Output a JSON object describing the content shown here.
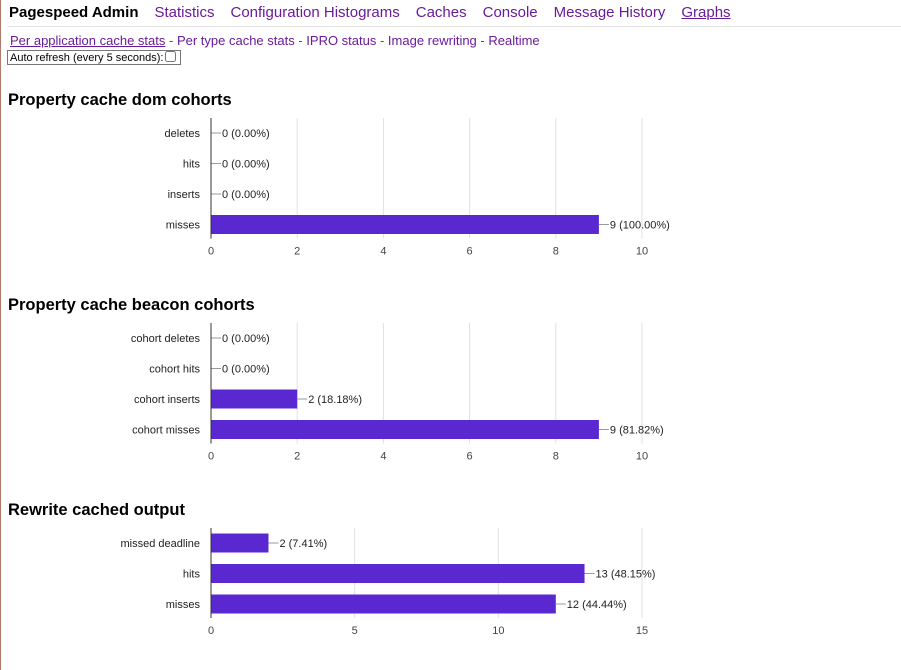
{
  "nav": {
    "brand": "Pagespeed Admin",
    "links": [
      "Statistics",
      "Configuration Histograms",
      "Caches",
      "Console",
      "Message History",
      "Graphs"
    ],
    "active": "Graphs"
  },
  "subnav": {
    "links": [
      "Per application cache stats",
      "Per type cache stats",
      "IPRO status",
      "Image rewriting",
      "Realtime"
    ],
    "separator": " - ",
    "active": "Per application cache stats"
  },
  "auto_refresh": {
    "label": "Auto refresh (every 5 seconds):",
    "checked": false
  },
  "colors": {
    "bar": "#5a28d0",
    "link": "#6a1b9a",
    "grid": "#e0e0e0",
    "axis": "#333333"
  },
  "chart_data": [
    {
      "type": "bar",
      "orientation": "horizontal",
      "title": "Property cache dom cohorts",
      "categories": [
        "deletes",
        "hits",
        "inserts",
        "misses"
      ],
      "values": [
        0,
        0,
        0,
        9
      ],
      "value_labels": [
        "0 (0.00%)",
        "0 (0.00%)",
        "0 (0.00%)",
        "9 (100.00%)"
      ],
      "xlim": [
        0,
        10
      ],
      "xticks": [
        0,
        2,
        4,
        6,
        8,
        10
      ],
      "grid": true
    },
    {
      "type": "bar",
      "orientation": "horizontal",
      "title": "Property cache beacon cohorts",
      "categories": [
        "cohort deletes",
        "cohort hits",
        "cohort inserts",
        "cohort misses"
      ],
      "values": [
        0,
        0,
        2,
        9
      ],
      "value_labels": [
        "0 (0.00%)",
        "0 (0.00%)",
        "2 (18.18%)",
        "9 (81.82%)"
      ],
      "xlim": [
        0,
        10
      ],
      "xticks": [
        0,
        2,
        4,
        6,
        8,
        10
      ],
      "grid": true
    },
    {
      "type": "bar",
      "orientation": "horizontal",
      "title": "Rewrite cached output",
      "categories": [
        "missed deadline",
        "hits",
        "misses"
      ],
      "values": [
        2,
        13,
        12
      ],
      "value_labels": [
        "2 (7.41%)",
        "13 (48.15%)",
        "12 (44.44%)"
      ],
      "xlim": [
        0,
        15
      ],
      "xticks": [
        0,
        5,
        10,
        15
      ],
      "grid": true
    }
  ]
}
